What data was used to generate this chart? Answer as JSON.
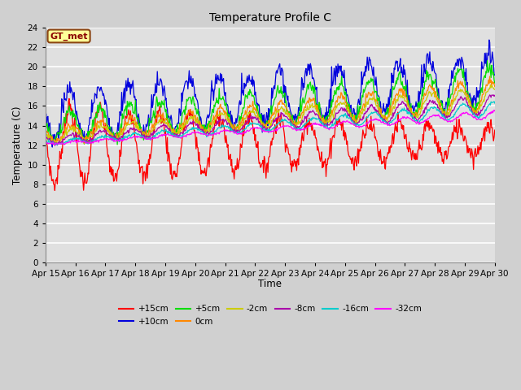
{
  "title": "Temperature Profile C",
  "xlabel": "Time",
  "ylabel": "Temperature (C)",
  "ylim": [
    0,
    24
  ],
  "background_color": "#d0d0d0",
  "plot_bg_color": "#e0e0e0",
  "annotation_text": "GT_met",
  "annotation_bg": "#ffff99",
  "annotation_border": "#8b4513",
  "annotation_text_color": "#8b0000",
  "x_tick_labels": [
    "Apr 15",
    "Apr 16",
    "Apr 17",
    "Apr 18",
    "Apr 19",
    "Apr 20",
    "Apr 21",
    "Apr 22",
    "Apr 23",
    "Apr 24",
    "Apr 25",
    "Apr 26",
    "Apr 27",
    "Apr 28",
    "Apr 29",
    "Apr 30"
  ],
  "series": [
    {
      "label": "+15cm",
      "color": "#ff0000"
    },
    {
      "label": "+10cm",
      "color": "#0000dd"
    },
    {
      "label": "+5cm",
      "color": "#00dd00"
    },
    {
      "label": "0cm",
      "color": "#ff8800"
    },
    {
      "label": "-2cm",
      "color": "#cccc00"
    },
    {
      "label": "-8cm",
      "color": "#aa00aa"
    },
    {
      "label": "-16cm",
      "color": "#00cccc"
    },
    {
      "label": "-32cm",
      "color": "#ff00ff"
    }
  ],
  "legend_ncol_row1": 6,
  "legend_ncol_row2": 2
}
